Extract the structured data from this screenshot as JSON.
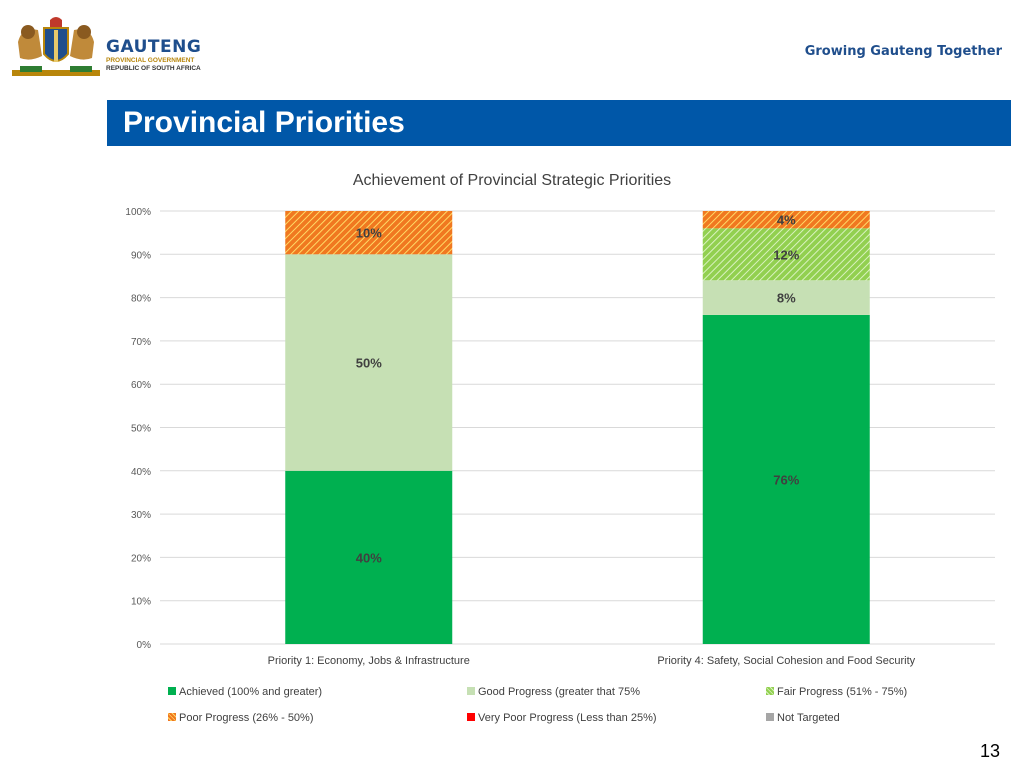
{
  "header": {
    "org_name": "GAUTENG",
    "org_sub1": "PROVINCIAL GOVERNMENT",
    "org_sub2": "REPUBLIC OF SOUTH AFRICA",
    "tagline": "Growing Gauteng Together"
  },
  "slide": {
    "title": "Provincial Priorities",
    "page_number": "13"
  },
  "chart_data": {
    "type": "bar",
    "stacked": true,
    "title": "Achievement of Provincial Strategic Priorities",
    "categories": [
      "Priority 1: Economy, Jobs & Infrastructure",
      "Priority 4: Safety, Social Cohesion and Food Security"
    ],
    "y_ticks": [
      "0%",
      "10%",
      "20%",
      "30%",
      "40%",
      "50%",
      "60%",
      "70%",
      "80%",
      "90%",
      "100%"
    ],
    "ylim": [
      0,
      100
    ],
    "grid": true,
    "legend_position": "bottom",
    "series": [
      {
        "name": "Achieved (100%  and greater)",
        "values": [
          40,
          76
        ],
        "labels": [
          "40%",
          "76%"
        ],
        "color": "#00b050",
        "pattern": "solid"
      },
      {
        "name": "Good Progress (greater that 75%",
        "values": [
          50,
          8
        ],
        "labels": [
          "50%",
          "8%"
        ],
        "color": "#c6e0b4",
        "pattern": "solid"
      },
      {
        "name": "Fair Progress (51% - 75%)",
        "values": [
          0,
          12
        ],
        "labels": [
          "",
          "12%"
        ],
        "color": "#92d050",
        "pattern": "hatch-green"
      },
      {
        "name": "Poor Progress (26% - 50%)",
        "values": [
          10,
          4
        ],
        "labels": [
          "10%",
          "4%"
        ],
        "color": "#f07820",
        "pattern": "hatch-orange"
      },
      {
        "name": "Very Poor Progress (Less than 25%)",
        "values": [
          0,
          0
        ],
        "labels": [
          "",
          ""
        ],
        "color": "#ff0000",
        "pattern": "solid"
      },
      {
        "name": "Not Targeted",
        "values": [
          0,
          0
        ],
        "labels": [
          "",
          ""
        ],
        "color": "#a6a6a6",
        "pattern": "solid"
      }
    ]
  }
}
